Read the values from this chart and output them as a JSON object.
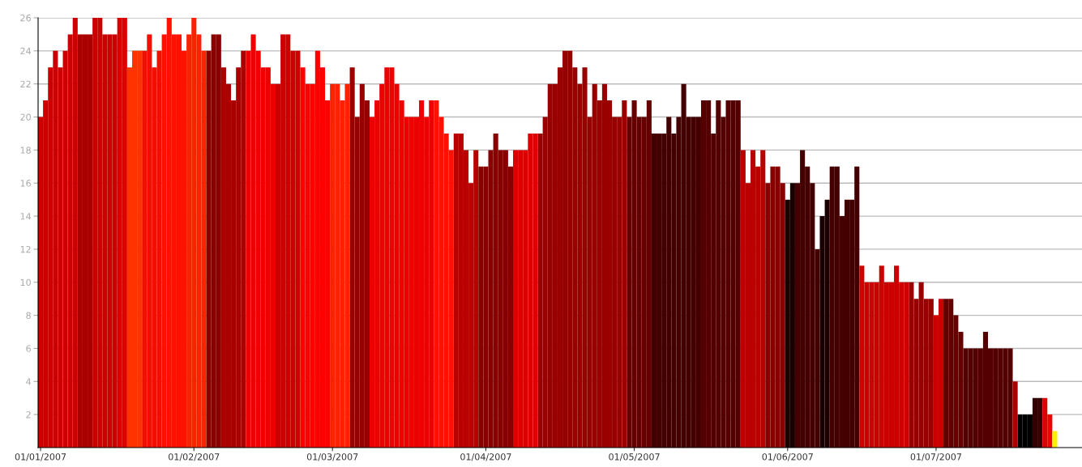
{
  "chart_data": {
    "type": "bar",
    "x": [
      "2007-01-01",
      "2007-01-02",
      "2007-01-03",
      "2007-01-04",
      "2007-01-05",
      "2007-01-06",
      "2007-01-07",
      "2007-01-08",
      "2007-01-09",
      "2007-01-10",
      "2007-01-11",
      "2007-01-12",
      "2007-01-13",
      "2007-01-14",
      "2007-01-15",
      "2007-01-16",
      "2007-01-17",
      "2007-01-18",
      "2007-01-19",
      "2007-01-20",
      "2007-01-21",
      "2007-01-22",
      "2007-01-23",
      "2007-01-24",
      "2007-01-25",
      "2007-01-26",
      "2007-01-27",
      "2007-01-28",
      "2007-01-29",
      "2007-01-30",
      "2007-01-31",
      "2007-02-01",
      "2007-02-02",
      "2007-02-03",
      "2007-02-04",
      "2007-02-05",
      "2007-02-06",
      "2007-02-07",
      "2007-02-08",
      "2007-02-09",
      "2007-02-10",
      "2007-02-11",
      "2007-02-12",
      "2007-02-13",
      "2007-02-14",
      "2007-02-15",
      "2007-02-16",
      "2007-02-17",
      "2007-02-18",
      "2007-02-19",
      "2007-02-20",
      "2007-02-21",
      "2007-02-22",
      "2007-02-23",
      "2007-02-24",
      "2007-02-25",
      "2007-02-26",
      "2007-02-27",
      "2007-02-28",
      "2007-03-01",
      "2007-03-02",
      "2007-03-03",
      "2007-03-04",
      "2007-03-05",
      "2007-03-06",
      "2007-03-07",
      "2007-03-08",
      "2007-03-09",
      "2007-03-10",
      "2007-03-11",
      "2007-03-12",
      "2007-03-13",
      "2007-03-14",
      "2007-03-15",
      "2007-03-16",
      "2007-03-17",
      "2007-03-18",
      "2007-03-19",
      "2007-03-20",
      "2007-03-21",
      "2007-03-22",
      "2007-03-23",
      "2007-03-24",
      "2007-03-25",
      "2007-03-26",
      "2007-03-27",
      "2007-03-28",
      "2007-03-29",
      "2007-03-30",
      "2007-03-31",
      "2007-04-01",
      "2007-04-02",
      "2007-04-03",
      "2007-04-04",
      "2007-04-05",
      "2007-04-06",
      "2007-04-07",
      "2007-04-08",
      "2007-04-09",
      "2007-04-10",
      "2007-04-11",
      "2007-04-12",
      "2007-04-13",
      "2007-04-14",
      "2007-04-15",
      "2007-04-16",
      "2007-04-17",
      "2007-04-18",
      "2007-04-19",
      "2007-04-20",
      "2007-04-21",
      "2007-04-22",
      "2007-04-23",
      "2007-04-24",
      "2007-04-25",
      "2007-04-26",
      "2007-04-27",
      "2007-04-28",
      "2007-04-29",
      "2007-04-30",
      "2007-05-01",
      "2007-05-02",
      "2007-05-03",
      "2007-05-04",
      "2007-05-05",
      "2007-05-06",
      "2007-05-07",
      "2007-05-08",
      "2007-05-09",
      "2007-05-10",
      "2007-05-11",
      "2007-05-12",
      "2007-05-13",
      "2007-05-14",
      "2007-05-15",
      "2007-05-16",
      "2007-05-17",
      "2007-05-18",
      "2007-05-19",
      "2007-05-20",
      "2007-05-21",
      "2007-05-22",
      "2007-05-23",
      "2007-05-24",
      "2007-05-25",
      "2007-05-26",
      "2007-05-27",
      "2007-05-28",
      "2007-05-29",
      "2007-05-30",
      "2007-05-31",
      "2007-06-01",
      "2007-06-02",
      "2007-06-03",
      "2007-06-04",
      "2007-06-05",
      "2007-06-06",
      "2007-06-07",
      "2007-06-08",
      "2007-06-09",
      "2007-06-10",
      "2007-06-11",
      "2007-06-12",
      "2007-06-13",
      "2007-06-14",
      "2007-06-15",
      "2007-06-16",
      "2007-06-17",
      "2007-06-18",
      "2007-06-19",
      "2007-06-20",
      "2007-06-21",
      "2007-06-22",
      "2007-06-23",
      "2007-06-24",
      "2007-06-25",
      "2007-06-26",
      "2007-06-27",
      "2007-06-28",
      "2007-06-29",
      "2007-06-30",
      "2007-07-01",
      "2007-07-02",
      "2007-07-03",
      "2007-07-04",
      "2007-07-05",
      "2007-07-06",
      "2007-07-07",
      "2007-07-08",
      "2007-07-09",
      "2007-07-10",
      "2007-07-11",
      "2007-07-12",
      "2007-07-13",
      "2007-07-14",
      "2007-07-15",
      "2007-07-16",
      "2007-07-17",
      "2007-07-18",
      "2007-07-19",
      "2007-07-20",
      "2007-07-21",
      "2007-07-22",
      "2007-07-23",
      "2007-07-24",
      "2007-07-25"
    ],
    "values": [
      20,
      21,
      23,
      24,
      23,
      24,
      25,
      26,
      25,
      25,
      25,
      26,
      26,
      25,
      25,
      25,
      26,
      26,
      23,
      24,
      24,
      24,
      25,
      23,
      24,
      25,
      26,
      25,
      25,
      24,
      25,
      26,
      25,
      24,
      24,
      25,
      25,
      23,
      22,
      21,
      23,
      24,
      24,
      25,
      24,
      23,
      23,
      22,
      22,
      25,
      25,
      24,
      24,
      23,
      22,
      22,
      24,
      23,
      21,
      22,
      22,
      21,
      22,
      23,
      20,
      22,
      21,
      20,
      21,
      22,
      23,
      23,
      22,
      21,
      20,
      20,
      20,
      21,
      20,
      21,
      21,
      20,
      19,
      18,
      19,
      19,
      18,
      16,
      18,
      17,
      17,
      18,
      19,
      18,
      18,
      17,
      18,
      18,
      18,
      19,
      19,
      19,
      20,
      22,
      22,
      23,
      24,
      24,
      23,
      22,
      23,
      20,
      22,
      21,
      22,
      21,
      20,
      20,
      21,
      20,
      21,
      20,
      20,
      21,
      19,
      19,
      19,
      20,
      19,
      20,
      22,
      20,
      20,
      20,
      21,
      21,
      19,
      21,
      20,
      21,
      21,
      21,
      18,
      16,
      18,
      17,
      18,
      16,
      17,
      17,
      16,
      15,
      16,
      16,
      18,
      17,
      16,
      12,
      14,
      15,
      17,
      17,
      14,
      15,
      15,
      17,
      11,
      10,
      10,
      10,
      11,
      10,
      10,
      11,
      10,
      10,
      10,
      9,
      10,
      9,
      9,
      8,
      9,
      9,
      9,
      8,
      7,
      6,
      6,
      6,
      6,
      7,
      6,
      6,
      6,
      6,
      6,
      4,
      2,
      2,
      2,
      3,
      3,
      3,
      2,
      1
    ],
    "colors": [
      "#cc0000",
      "#cc0000",
      "#cc0000",
      "#cc0000",
      "#cc0000",
      "#cc0000",
      "#cc0000",
      "#cc0000",
      "#aa0000",
      "#aa0000",
      "#aa0000",
      "#cc0000",
      "#cc0000",
      "#cc0000",
      "#cc0000",
      "#cc0000",
      "#dd0000",
      "#dd0000",
      "#ff3300",
      "#ff3300",
      "#ff3300",
      "#ee1100",
      "#ee1100",
      "#ee1100",
      "#ee1100",
      "#ff1100",
      "#ff1100",
      "#ff1100",
      "#ff1100",
      "#ff1100",
      "#ff2200",
      "#ff2200",
      "#ff2200",
      "#ff2200",
      "#880000",
      "#880000",
      "#880000",
      "#aa0000",
      "#aa0000",
      "#aa0000",
      "#aa0000",
      "#aa0000",
      "#ee0000",
      "#ee0000",
      "#ee0000",
      "#ee0000",
      "#ee0000",
      "#ee0000",
      "#cc0000",
      "#cc0000",
      "#cc0000",
      "#cc0000",
      "#cc0000",
      "#ff0000",
      "#ff0000",
      "#ff0000",
      "#ff0000",
      "#ff0000",
      "#ff0000",
      "#ff2200",
      "#ff2200",
      "#ff2200",
      "#ff2200",
      "#990000",
      "#990000",
      "#990000",
      "#990000",
      "#ee0000",
      "#ee0000",
      "#ee0000",
      "#ee0000",
      "#ee0000",
      "#ee0000",
      "#ee0000",
      "#ee0000",
      "#ee0000",
      "#ee0000",
      "#ee0000",
      "#ee0000",
      "#ee0000",
      "#ff1100",
      "#ff1100",
      "#ff1100",
      "#ff1100",
      "#bb0000",
      "#bb0000",
      "#bb0000",
      "#bb0000",
      "#bb0000",
      "#880000",
      "#880000",
      "#880000",
      "#880000",
      "#880000",
      "#880000",
      "#880000",
      "#dd0000",
      "#dd0000",
      "#dd0000",
      "#dd0000",
      "#dd0000",
      "#990000",
      "#990000",
      "#990000",
      "#990000",
      "#990000",
      "#990000",
      "#990000",
      "#990000",
      "#990000",
      "#990000",
      "#990000",
      "#990000",
      "#990000",
      "#990000",
      "#990000",
      "#990000",
      "#990000",
      "#990000",
      "#660000",
      "#660000",
      "#660000",
      "#660000",
      "#660000",
      "#440000",
      "#440000",
      "#440000",
      "#440000",
      "#440000",
      "#440000",
      "#440000",
      "#440000",
      "#440000",
      "#440000",
      "#550000",
      "#550000",
      "#550000",
      "#550000",
      "#550000",
      "#550000",
      "#550000",
      "#550000",
      "#bb0000",
      "#bb0000",
      "#bb0000",
      "#bb0000",
      "#bb0000",
      "#880000",
      "#880000",
      "#880000",
      "#880000",
      "#1a0000",
      "#1a0000",
      "#440000",
      "#440000",
      "#440000",
      "#440000",
      "#440000",
      "#1a0000",
      "#1a0000",
      "#440000",
      "#440000",
      "#440000",
      "#440000",
      "#440000",
      "#440000",
      "#cc0000",
      "#cc0000",
      "#cc0000",
      "#cc0000",
      "#cc0000",
      "#cc0000",
      "#cc0000",
      "#cc0000",
      "#cc0000",
      "#cc0000",
      "#990000",
      "#990000",
      "#990000",
      "#990000",
      "#990000",
      "#cc0000",
      "#cc0000",
      "#660000",
      "#660000",
      "#660000",
      "#660000",
      "#550000",
      "#550000",
      "#550000",
      "#550000",
      "#550000",
      "#550000",
      "#550000",
      "#550000",
      "#550000",
      "#550000",
      "#aa0000",
      "#000000",
      "#000000",
      "#000000",
      "#330000",
      "#330000",
      "#dd0000",
      "#ee0000",
      "#ffee00"
    ],
    "xlim": [
      "2006-12-31T12:00",
      "2007-07-30T12:00"
    ],
    "xticks": [
      {
        "value": "2007-01-01",
        "label": "01/01/2007"
      },
      {
        "value": "2007-02-01",
        "label": "01/02/2007"
      },
      {
        "value": "2007-03-01",
        "label": "01/03/2007"
      },
      {
        "value": "2007-04-01",
        "label": "01/04/2007"
      },
      {
        "value": "2007-05-01",
        "label": "01/05/2007"
      },
      {
        "value": "2007-06-01",
        "label": "01/06/2007"
      },
      {
        "value": "2007-07-01",
        "label": "01/07/2007"
      }
    ],
    "ylim": [
      0,
      26
    ],
    "yticks": [
      2,
      4,
      6,
      8,
      10,
      12,
      14,
      16,
      18,
      20,
      22,
      24,
      26
    ],
    "grid": "y"
  }
}
